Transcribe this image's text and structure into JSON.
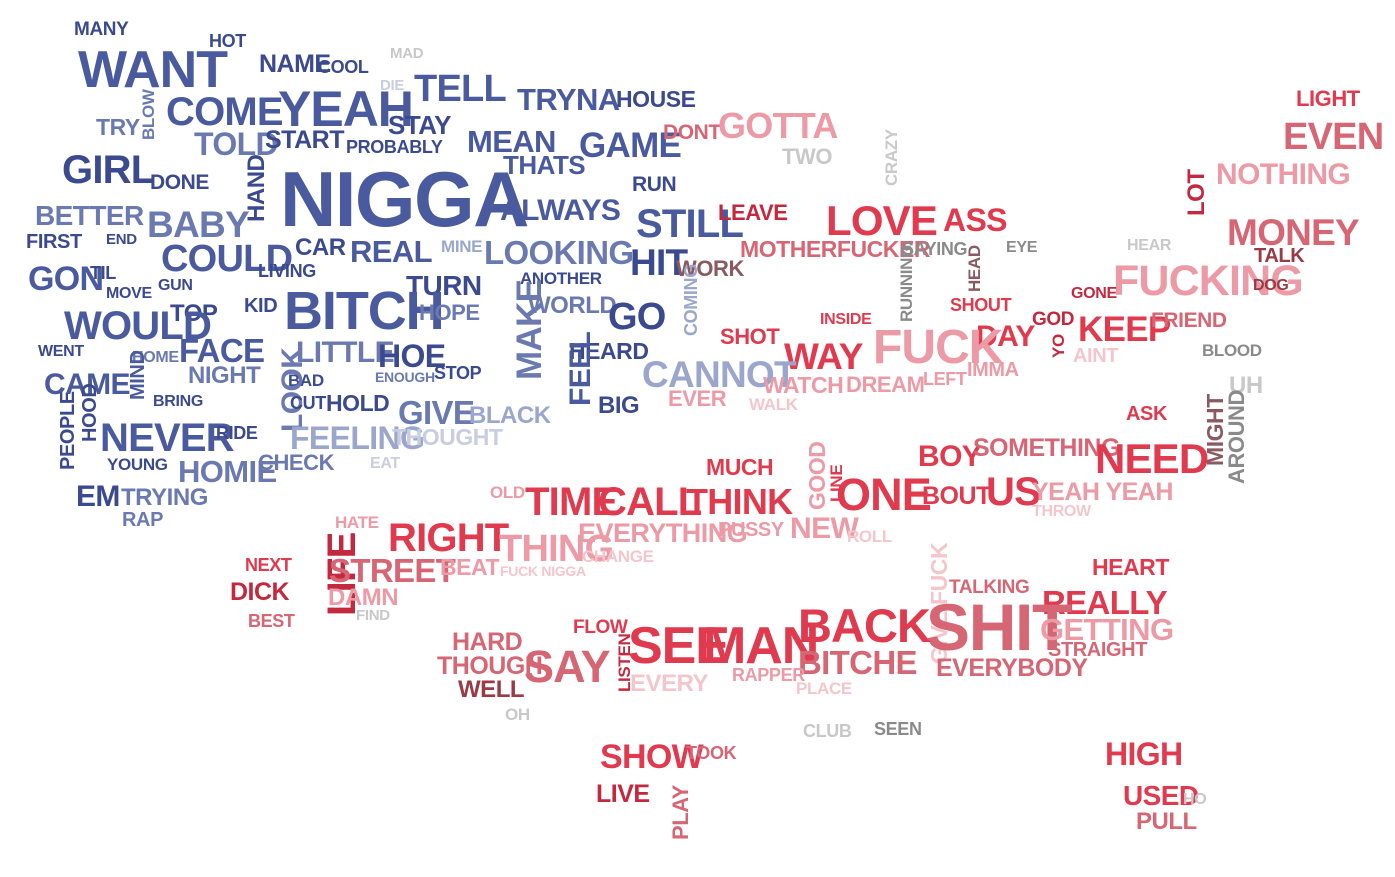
{
  "palette": {
    "navy": "#3b4a8e",
    "blue": "#4a5a9e",
    "slate": "#6a7ab0",
    "lavender": "#9aa6cc",
    "pale_blue": "#c8cde0",
    "red": "#e03a4e",
    "crimson": "#c4283e",
    "rose": "#d66674",
    "pink": "#ec9aa6",
    "light_pink": "#f4c6cc",
    "maroon": "#9a3a46",
    "brown": "#8a5a60",
    "gray": "#8a8a8a",
    "light_gray": "#c8c8c8"
  },
  "words": [
    {
      "t": "MANY",
      "c": "navy"
    },
    {
      "t": "HOT",
      "c": "navy"
    },
    {
      "t": "WANT",
      "c": "blue"
    },
    {
      "t": "NAME",
      "c": "navy"
    },
    {
      "t": "COOL",
      "c": "navy"
    },
    {
      "t": "MAD",
      "c": "light_gray"
    },
    {
      "t": "DIE",
      "c": "pale_blue"
    },
    {
      "t": "TELL",
      "c": "blue"
    },
    {
      "t": "TRYNA",
      "c": "blue"
    },
    {
      "t": "HOUSE",
      "c": "navy"
    },
    {
      "t": "LIGHT",
      "c": "red"
    },
    {
      "t": "TRY",
      "c": "slate"
    },
    {
      "t": "BLOW",
      "c": "slate"
    },
    {
      "t": "COME",
      "c": "blue"
    },
    {
      "t": "YEAH",
      "c": "blue"
    },
    {
      "t": "STAY",
      "c": "navy"
    },
    {
      "t": "TOLD",
      "c": "slate"
    },
    {
      "t": "START",
      "c": "navy"
    },
    {
      "t": "PROBABLY",
      "c": "navy"
    },
    {
      "t": "MEAN",
      "c": "blue"
    },
    {
      "t": "GAME",
      "c": "blue"
    },
    {
      "t": "DONT",
      "c": "rose"
    },
    {
      "t": "GOTTA",
      "c": "pink"
    },
    {
      "t": "EVEN",
      "c": "rose"
    },
    {
      "t": "THATS",
      "c": "blue"
    },
    {
      "t": "TWO",
      "c": "light_gray"
    },
    {
      "t": "CRAZY",
      "c": "light_gray"
    },
    {
      "t": "GIRL",
      "c": "navy"
    },
    {
      "t": "DONE",
      "c": "navy"
    },
    {
      "t": "HAND",
      "c": "navy"
    },
    {
      "t": "NIGGA",
      "c": "blue"
    },
    {
      "t": "RUN",
      "c": "navy"
    },
    {
      "t": "NOTHING",
      "c": "pink"
    },
    {
      "t": "ALWAYS",
      "c": "blue"
    },
    {
      "t": "STILL",
      "c": "blue"
    },
    {
      "t": "LEAVE",
      "c": "crimson"
    },
    {
      "t": "LOVE",
      "c": "red"
    },
    {
      "t": "ASS",
      "c": "red"
    },
    {
      "t": "LOT",
      "c": "crimson"
    },
    {
      "t": "BETTER",
      "c": "slate"
    },
    {
      "t": "FIRST",
      "c": "navy"
    },
    {
      "t": "END",
      "c": "navy"
    },
    {
      "t": "BABY",
      "c": "slate"
    },
    {
      "t": "MONEY",
      "c": "rose"
    },
    {
      "t": "CAR",
      "c": "navy"
    },
    {
      "t": "REAL",
      "c": "blue"
    },
    {
      "t": "MINE",
      "c": "lavender"
    },
    {
      "t": "LOOKING",
      "c": "slate"
    },
    {
      "t": "MOTHERFUCKER",
      "c": "rose"
    },
    {
      "t": "SAYING",
      "c": "gray"
    },
    {
      "t": "HEAD",
      "c": "brown"
    },
    {
      "t": "EYE",
      "c": "gray"
    },
    {
      "t": "HEAR",
      "c": "light_gray"
    },
    {
      "t": "TALK",
      "c": "maroon"
    },
    {
      "t": "GON",
      "c": "blue"
    },
    {
      "t": "TIL",
      "c": "navy"
    },
    {
      "t": "COULD",
      "c": "blue"
    },
    {
      "t": "LIVING",
      "c": "navy"
    },
    {
      "t": "HIT",
      "c": "navy"
    },
    {
      "t": "WORK",
      "c": "brown"
    },
    {
      "t": "FUCKING",
      "c": "pink"
    },
    {
      "t": "DOG",
      "c": "maroon"
    },
    {
      "t": "MOVE",
      "c": "navy"
    },
    {
      "t": "GUN",
      "c": "navy"
    },
    {
      "t": "TURN",
      "c": "navy"
    },
    {
      "t": "ANOTHER",
      "c": "navy"
    },
    {
      "t": "BITCH",
      "c": "blue"
    },
    {
      "t": "GONE",
      "c": "crimson"
    },
    {
      "t": "RUNNING",
      "c": "gray"
    },
    {
      "t": "SHOUT",
      "c": "red"
    },
    {
      "t": "KID",
      "c": "navy"
    },
    {
      "t": "TOP",
      "c": "navy"
    },
    {
      "t": "HOPE",
      "c": "slate"
    },
    {
      "t": "WORLD",
      "c": "slate"
    },
    {
      "t": "GO",
      "c": "navy"
    },
    {
      "t": "COMING",
      "c": "lavender"
    },
    {
      "t": "INSIDE",
      "c": "red"
    },
    {
      "t": "GOD",
      "c": "crimson"
    },
    {
      "t": "KEEP",
      "c": "red"
    },
    {
      "t": "FRIEND",
      "c": "rose"
    },
    {
      "t": "WOULD",
      "c": "blue"
    },
    {
      "t": "MAKE",
      "c": "slate"
    },
    {
      "t": "SHOT",
      "c": "red"
    },
    {
      "t": "DAY",
      "c": "red"
    },
    {
      "t": "YO",
      "c": "crimson"
    },
    {
      "t": "WENT",
      "c": "navy"
    },
    {
      "t": "HOME",
      "c": "slate"
    },
    {
      "t": "FACE",
      "c": "blue"
    },
    {
      "t": "LITTLE",
      "c": "slate"
    },
    {
      "t": "HOE",
      "c": "navy"
    },
    {
      "t": "HEARD",
      "c": "navy"
    },
    {
      "t": "WAY",
      "c": "red"
    },
    {
      "t": "FUCK",
      "c": "pink"
    },
    {
      "t": "AINT",
      "c": "light_pink"
    },
    {
      "t": "BLOOD",
      "c": "gray"
    },
    {
      "t": "CAME",
      "c": "blue"
    },
    {
      "t": "MIND",
      "c": "blue"
    },
    {
      "t": "NIGHT",
      "c": "slate"
    },
    {
      "t": "BAD",
      "c": "navy"
    },
    {
      "t": "ENOUGH",
      "c": "slate"
    },
    {
      "t": "STOP",
      "c": "navy"
    },
    {
      "t": "FEEL",
      "c": "blue"
    },
    {
      "t": "CANNOT",
      "c": "lavender"
    },
    {
      "t": "IMMA",
      "c": "pink"
    },
    {
      "t": "LEFT",
      "c": "pink"
    },
    {
      "t": "WATCH",
      "c": "pink"
    },
    {
      "t": "DREAM",
      "c": "pink"
    },
    {
      "t": "UH",
      "c": "light_gray"
    },
    {
      "t": "PEOPLE",
      "c": "navy"
    },
    {
      "t": "HOOD",
      "c": "navy"
    },
    {
      "t": "BRING",
      "c": "navy"
    },
    {
      "t": "LOOK",
      "c": "slate"
    },
    {
      "t": "CUT",
      "c": "navy"
    },
    {
      "t": "HOLD",
      "c": "navy"
    },
    {
      "t": "GIVE",
      "c": "slate"
    },
    {
      "t": "BLACK",
      "c": "lavender"
    },
    {
      "t": "BIG",
      "c": "navy"
    },
    {
      "t": "EVER",
      "c": "pink"
    },
    {
      "t": "WALK",
      "c": "light_pink"
    },
    {
      "t": "ASK",
      "c": "red"
    },
    {
      "t": "MIGHT",
      "c": "brown"
    },
    {
      "t": "AROUND",
      "c": "gray"
    },
    {
      "t": "NEVER",
      "c": "blue"
    },
    {
      "t": "RIDE",
      "c": "navy"
    },
    {
      "t": "FEELING",
      "c": "lavender"
    },
    {
      "t": "THOUGHT",
      "c": "pale_blue"
    },
    {
      "t": "BOY",
      "c": "red"
    },
    {
      "t": "SOMETHING",
      "c": "rose"
    },
    {
      "t": "NEED",
      "c": "red"
    },
    {
      "t": "YOUNG",
      "c": "navy"
    },
    {
      "t": "HOMIE",
      "c": "slate"
    },
    {
      "t": "CHECK",
      "c": "slate"
    },
    {
      "t": "EAT",
      "c": "pale_blue"
    },
    {
      "t": "MUCH",
      "c": "red"
    },
    {
      "t": "GOOD",
      "c": "pink"
    },
    {
      "t": "LINE",
      "c": "red"
    },
    {
      "t": "ONE",
      "c": "red"
    },
    {
      "t": "BOUT",
      "c": "red"
    },
    {
      "t": "US",
      "c": "red"
    },
    {
      "t": "YEAH YEAH",
      "c": "pink"
    },
    {
      "t": "EM",
      "c": "navy"
    },
    {
      "t": "TRYING",
      "c": "slate"
    },
    {
      "t": "OLD",
      "c": "pink"
    },
    {
      "t": "TIME",
      "c": "red"
    },
    {
      "t": "CALL",
      "c": "red"
    },
    {
      "t": "THINK",
      "c": "red"
    },
    {
      "t": "THROW",
      "c": "light_pink"
    },
    {
      "t": "RAP",
      "c": "slate"
    },
    {
      "t": "HATE",
      "c": "pink"
    },
    {
      "t": "RIGHT",
      "c": "red"
    },
    {
      "t": "EVERYTHING",
      "c": "pink"
    },
    {
      "t": "PUSSY",
      "c": "pink"
    },
    {
      "t": "NEW",
      "c": "pink"
    },
    {
      "t": "ROLL",
      "c": "light_pink"
    },
    {
      "t": "THING",
      "c": "pink"
    },
    {
      "t": "CHANGE",
      "c": "light_pink"
    },
    {
      "t": "NEXT",
      "c": "red"
    },
    {
      "t": "LIFE",
      "c": "crimson"
    },
    {
      "t": "STREET",
      "c": "rose"
    },
    {
      "t": "BEAT",
      "c": "pink"
    },
    {
      "t": "FUCK NIGGA",
      "c": "light_pink"
    },
    {
      "t": "HEART",
      "c": "red"
    },
    {
      "t": "TALKING",
      "c": "rose"
    },
    {
      "t": "DICK",
      "c": "crimson"
    },
    {
      "t": "DAMN",
      "c": "pink"
    },
    {
      "t": "BEST",
      "c": "rose"
    },
    {
      "t": "FIND",
      "c": "light_gray"
    },
    {
      "t": "REALLY",
      "c": "red"
    },
    {
      "t": "GIVE FUCK",
      "c": "light_pink"
    },
    {
      "t": "SHIT",
      "c": "rose"
    },
    {
      "t": "FLOW",
      "c": "red"
    },
    {
      "t": "BACK",
      "c": "red"
    },
    {
      "t": "GETTING",
      "c": "pink"
    },
    {
      "t": "HARD",
      "c": "rose"
    },
    {
      "t": "SEE",
      "c": "red"
    },
    {
      "t": "MAN",
      "c": "red"
    },
    {
      "t": "LISTEN",
      "c": "crimson"
    },
    {
      "t": "STRAIGHT",
      "c": "rose"
    },
    {
      "t": "THOUGH",
      "c": "rose"
    },
    {
      "t": "SAY",
      "c": "rose"
    },
    {
      "t": "BITCHE",
      "c": "rose"
    },
    {
      "t": "EVERYBODY",
      "c": "rose"
    },
    {
      "t": "RAPPER",
      "c": "pink"
    },
    {
      "t": "EVERY",
      "c": "light_pink"
    },
    {
      "t": "WELL",
      "c": "maroon"
    },
    {
      "t": "PLACE",
      "c": "light_pink"
    },
    {
      "t": "OH",
      "c": "light_gray"
    },
    {
      "t": "CLUB",
      "c": "light_gray"
    },
    {
      "t": "SEEN",
      "c": "gray"
    },
    {
      "t": "SHOW",
      "c": "red"
    },
    {
      "t": "TOOK",
      "c": "rose"
    },
    {
      "t": "HIGH",
      "c": "red"
    },
    {
      "t": "LIVE",
      "c": "crimson"
    },
    {
      "t": "PLAY",
      "c": "rose"
    },
    {
      "t": "USED",
      "c": "red"
    },
    {
      "t": "HO",
      "c": "light_gray"
    },
    {
      "t": "PULL",
      "c": "rose"
    }
  ]
}
